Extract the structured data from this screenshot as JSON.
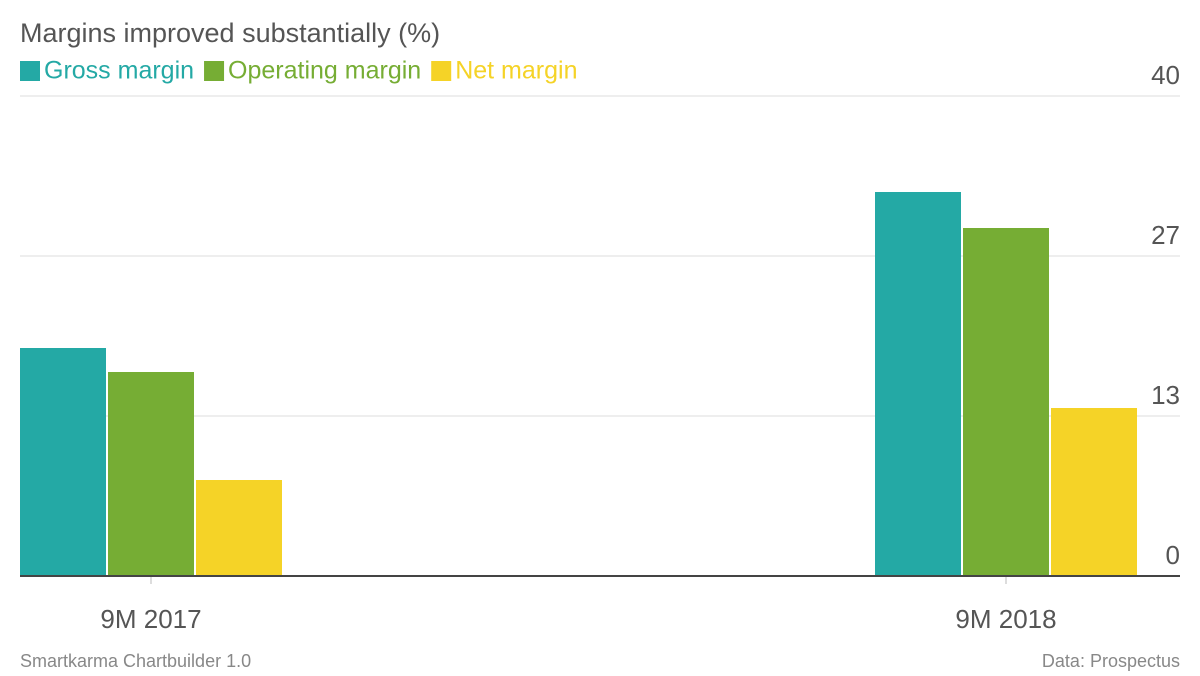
{
  "chart_data": {
    "type": "bar",
    "title": "Margins improved substantially (%)",
    "categories": [
      "9M 2017",
      "9M 2018"
    ],
    "series": [
      {
        "name": "Gross margin",
        "color": "#24a9a5",
        "values": [
          19,
          32
        ]
      },
      {
        "name": "Operating margin",
        "color": "#76ad34",
        "values": [
          17,
          29
        ]
      },
      {
        "name": "Net margin",
        "color": "#f5d327",
        "values": [
          8,
          14
        ]
      }
    ],
    "ylim": [
      0,
      40
    ],
    "yticks": [
      0,
      {
        "value": 13.33,
        "label": "13"
      },
      {
        "value": 26.67,
        "label": "27"
      },
      40
    ],
    "grid": true,
    "credit": "Smartkarma Chartbuilder 1.0",
    "source": "Data: Prospectus"
  }
}
